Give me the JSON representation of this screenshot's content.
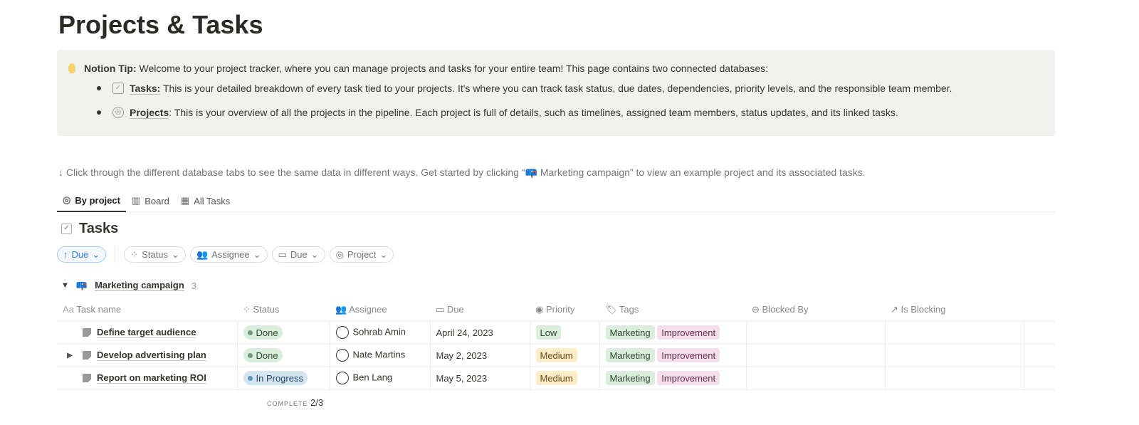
{
  "page": {
    "title": "Projects & Tasks"
  },
  "callout": {
    "icon": "lightbulb-icon",
    "lead": "Notion Tip:",
    "text": " Welcome to your project tracker, where you can manage projects and tasks for your entire team! This page contains two connected databases:",
    "bullets": [
      {
        "icon": "checkbox-link-icon",
        "link": "Tasks:",
        "text": " This is your detailed breakdown of every task tied to your projects. It's where you can track task status, due dates, dependencies, priority levels, and the responsible team member."
      },
      {
        "icon": "target-link-icon",
        "link": "Projects",
        "text": ": This is your overview of all the projects in the pipeline. Each project is full of details, such as timelines, assigned team members, status updates, and its linked tasks."
      }
    ]
  },
  "hint": "↓ Click through the different database tabs to see the same data in different ways. Get started by clicking “📪 Marketing campaign” to view an example project and its associated tasks.",
  "tabs": [
    {
      "label": "By project",
      "icon": "target-icon"
    },
    {
      "label": "Board",
      "icon": "board-icon"
    },
    {
      "label": "All Tasks",
      "icon": "table-icon"
    }
  ],
  "database": {
    "title": "Tasks"
  },
  "filters": {
    "sort": "Due",
    "items": [
      "Status",
      "Assignee",
      "Due",
      "Project"
    ]
  },
  "group": {
    "name": "Marketing campaign",
    "count": "3",
    "icon": "mailbox-icon"
  },
  "columns": [
    "Task name",
    "Status",
    "Assignee",
    "Due",
    "Priority",
    "Tags",
    "Blocked By",
    "Is Blocking"
  ],
  "rows": [
    {
      "name": "Define target audience",
      "status": "Done",
      "assignee": "Sohrab Amin",
      "due": "April 24, 2023",
      "priority": "Low",
      "tags": [
        "Marketing",
        "Improvement"
      ],
      "has_subtasks": false
    },
    {
      "name": "Develop advertising plan",
      "status": "Done",
      "assignee": "Nate Martins",
      "due": "May 2, 2023",
      "priority": "Medium",
      "tags": [
        "Marketing",
        "Improvement"
      ],
      "has_subtasks": true
    },
    {
      "name": "Report on marketing ROI",
      "status": "In Progress",
      "assignee": "Ben Lang",
      "due": "May 5, 2023",
      "priority": "Medium",
      "tags": [
        "Marketing",
        "Improvement"
      ],
      "has_subtasks": false
    }
  ],
  "footer": {
    "label": "COMPLETE",
    "value": "2/3"
  }
}
